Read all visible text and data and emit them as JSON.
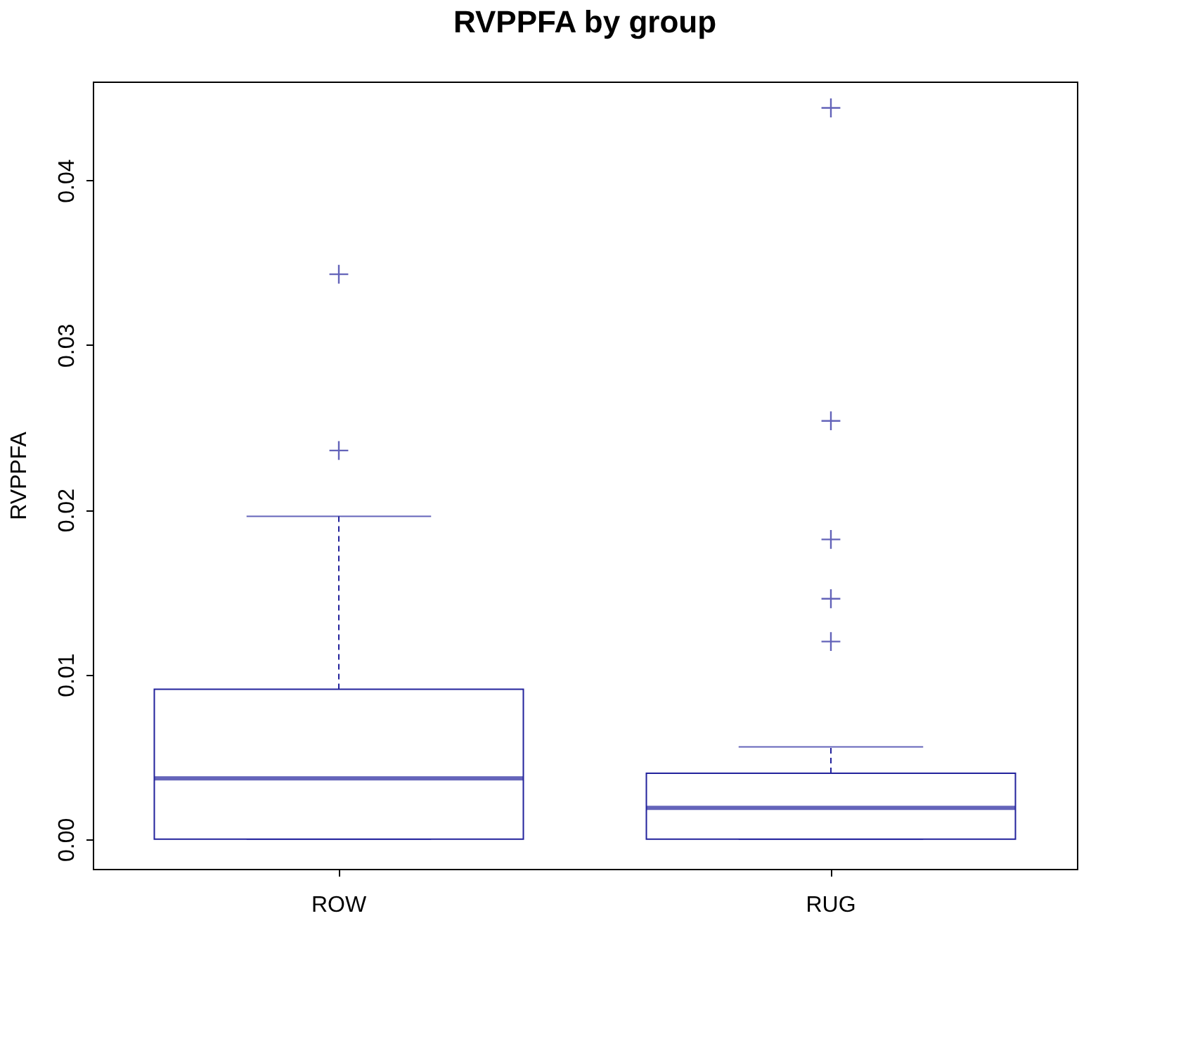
{
  "chart_data": {
    "type": "box",
    "title": "RVPPFA by group",
    "ylabel": "RVPPFA",
    "categories": [
      "ROW",
      "RUG"
    ],
    "series": [
      {
        "color": "#22229c",
        "boxes": [
          {
            "low": 0,
            "q1": 0,
            "median": 0.0037,
            "q3": 0.0091,
            "high": 0.0196,
            "outliers": [
              0.0236,
              0.0343
            ]
          },
          {
            "low": 0,
            "q1": 0,
            "median": 0.0019,
            "q3": 0.004,
            "high": 0.0056,
            "outliers": [
              0.012,
              0.0146,
              0.0182,
              0.0254,
              0.0444
            ]
          }
        ]
      }
    ],
    "ylim": [
      -0.0018,
      0.046
    ],
    "yticks": [
      {
        "value": 0,
        "label": "0.00"
      },
      {
        "value": 0.01,
        "label": "0.01"
      },
      {
        "value": 0.02,
        "label": "0.02"
      },
      {
        "value": 0.03,
        "label": "0.03"
      },
      {
        "value": 0.04,
        "label": "0.04"
      }
    ],
    "grid": false
  }
}
